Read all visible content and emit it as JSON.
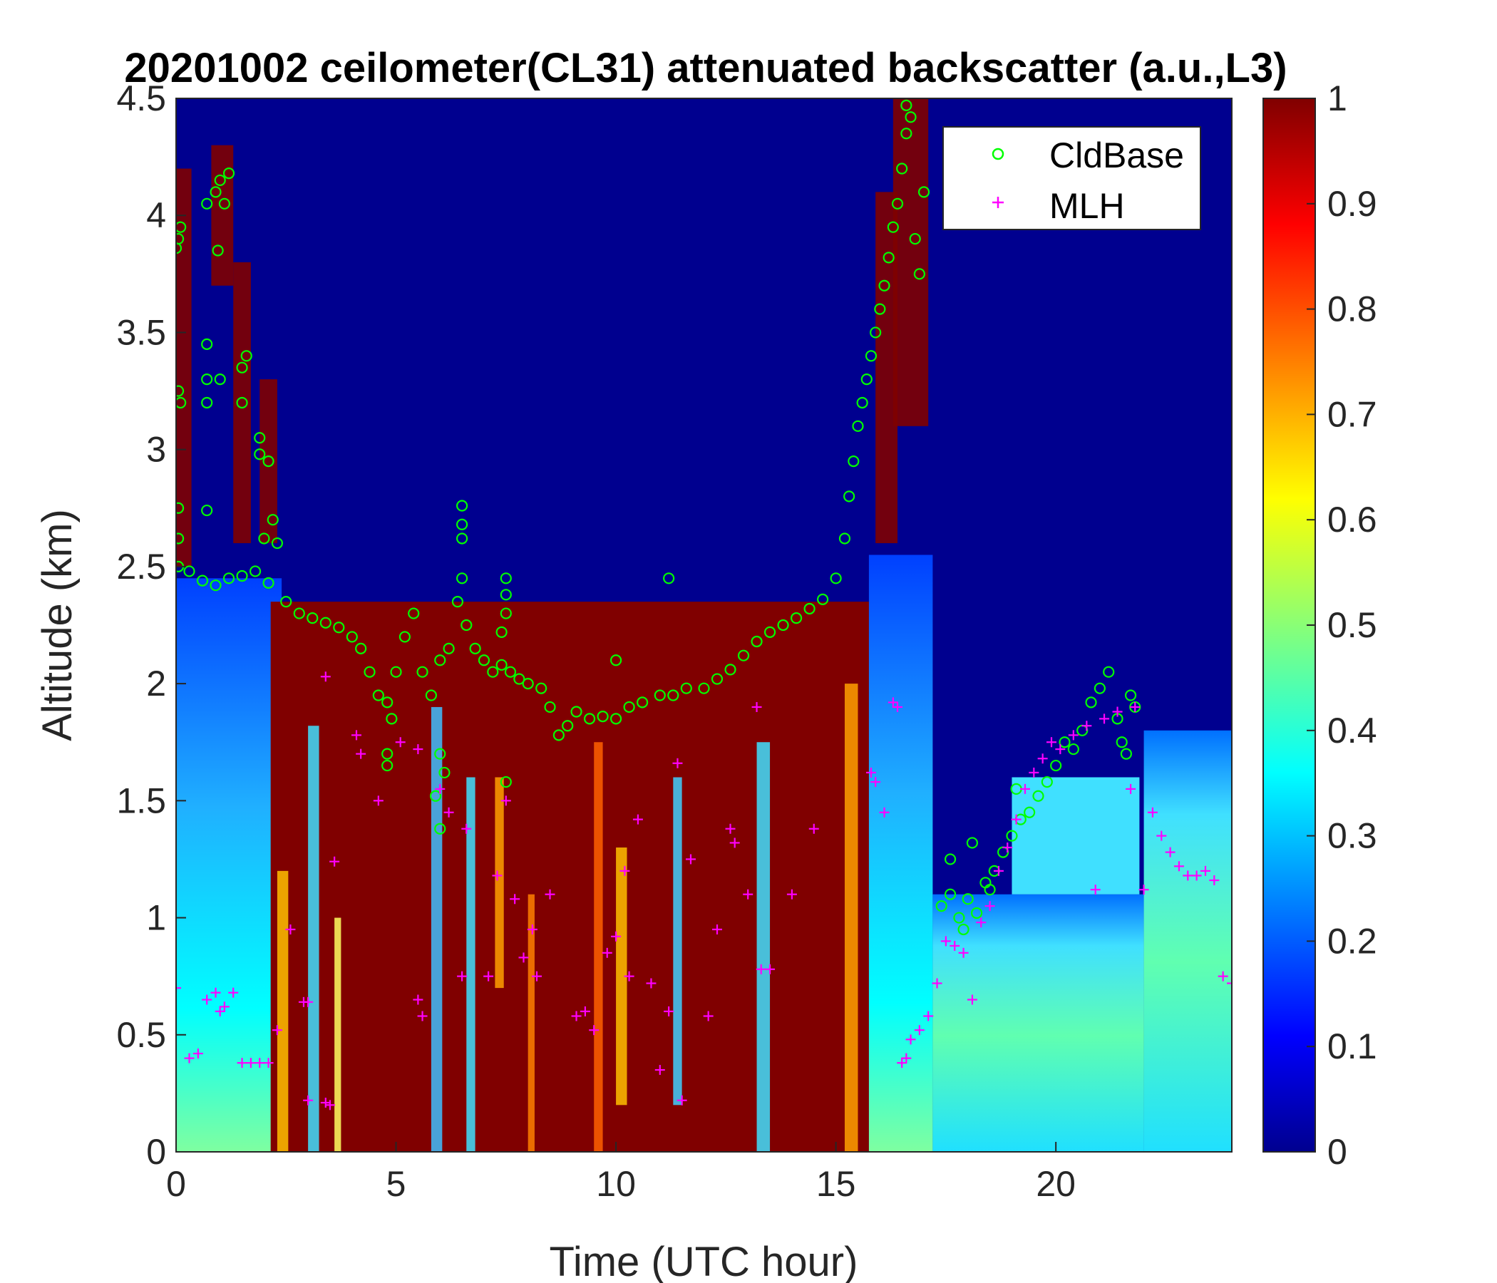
{
  "chart_data": {
    "type": "heatmap",
    "title": "20201002 ceilometer(CL31) attenuated backscatter (a.u.,L3)",
    "xlabel": "Time (UTC hour)",
    "ylabel": "Altitude (km)",
    "xlim": [
      0,
      24
    ],
    "ylim": [
      0,
      4.5
    ],
    "x_ticks": [
      "0",
      "5",
      "10",
      "15",
      "20"
    ],
    "y_ticks": [
      "0",
      "0.5",
      "1",
      "1.5",
      "2",
      "2.5",
      "3",
      "3.5",
      "4",
      "4.5"
    ],
    "colorbar": {
      "colormap": "jet",
      "range": [
        0,
        1
      ],
      "ticks": [
        "0",
        "0.1",
        "0.2",
        "0.3",
        "0.4",
        "0.5",
        "0.6",
        "0.7",
        "0.8",
        "0.9",
        "1"
      ]
    },
    "legend_position": "top-right",
    "grid": false,
    "series": [
      {
        "name": "CldBase",
        "marker": "circle",
        "color": "#00ff00",
        "points": [
          [
            0.0,
            3.86
          ],
          [
            0.05,
            3.9
          ],
          [
            0.1,
            3.95
          ],
          [
            0.05,
            3.25
          ],
          [
            0.1,
            3.2
          ],
          [
            0.05,
            2.75
          ],
          [
            0.05,
            2.62
          ],
          [
            0.05,
            2.5
          ],
          [
            0.3,
            2.48
          ],
          [
            0.6,
            2.44
          ],
          [
            0.9,
            2.42
          ],
          [
            1.2,
            2.45
          ],
          [
            1.5,
            2.46
          ],
          [
            1.8,
            2.48
          ],
          [
            2.1,
            2.43
          ],
          [
            0.7,
            4.05
          ],
          [
            0.9,
            4.1
          ],
          [
            1.0,
            4.15
          ],
          [
            1.1,
            4.05
          ],
          [
            1.2,
            4.18
          ],
          [
            0.95,
            3.85
          ],
          [
            0.7,
            3.45
          ],
          [
            0.7,
            3.3
          ],
          [
            0.7,
            3.2
          ],
          [
            1.0,
            3.3
          ],
          [
            1.5,
            3.35
          ],
          [
            1.6,
            3.4
          ],
          [
            1.5,
            3.2
          ],
          [
            1.9,
            3.05
          ],
          [
            1.9,
            2.98
          ],
          [
            2.1,
            2.95
          ],
          [
            2.2,
            2.7
          ],
          [
            2.3,
            2.6
          ],
          [
            2.0,
            2.62
          ],
          [
            0.7,
            2.74
          ],
          [
            2.5,
            2.35
          ],
          [
            2.8,
            2.3
          ],
          [
            3.1,
            2.28
          ],
          [
            3.4,
            2.26
          ],
          [
            3.7,
            2.24
          ],
          [
            4.0,
            2.2
          ],
          [
            4.2,
            2.15
          ],
          [
            4.4,
            2.05
          ],
          [
            4.6,
            1.95
          ],
          [
            4.8,
            1.92
          ],
          [
            5.0,
            2.05
          ],
          [
            5.2,
            2.2
          ],
          [
            5.4,
            2.3
          ],
          [
            5.6,
            2.05
          ],
          [
            5.8,
            1.95
          ],
          [
            6.0,
            2.1
          ],
          [
            6.2,
            2.15
          ],
          [
            6.4,
            2.35
          ],
          [
            6.5,
            2.45
          ],
          [
            6.6,
            2.25
          ],
          [
            6.8,
            2.15
          ],
          [
            7.0,
            2.1
          ],
          [
            7.2,
            2.05
          ],
          [
            7.4,
            2.08
          ],
          [
            7.6,
            2.05
          ],
          [
            7.8,
            2.02
          ],
          [
            8.0,
            2.0
          ],
          [
            8.3,
            1.98
          ],
          [
            8.5,
            1.9
          ],
          [
            8.7,
            1.78
          ],
          [
            8.9,
            1.82
          ],
          [
            9.1,
            1.88
          ],
          [
            9.4,
            1.85
          ],
          [
            9.7,
            1.86
          ],
          [
            10.0,
            1.85
          ],
          [
            10.3,
            1.9
          ],
          [
            10.6,
            1.92
          ],
          [
            11.0,
            1.95
          ],
          [
            11.3,
            1.95
          ],
          [
            11.6,
            1.98
          ],
          [
            12.0,
            1.98
          ],
          [
            12.3,
            2.02
          ],
          [
            12.6,
            2.06
          ],
          [
            12.9,
            2.12
          ],
          [
            13.2,
            2.18
          ],
          [
            13.5,
            2.22
          ],
          [
            13.8,
            2.25
          ],
          [
            14.1,
            2.28
          ],
          [
            14.4,
            2.32
          ],
          [
            14.7,
            2.36
          ],
          [
            15.0,
            2.45
          ],
          [
            15.2,
            2.62
          ],
          [
            15.3,
            2.8
          ],
          [
            15.4,
            2.95
          ],
          [
            15.5,
            3.1
          ],
          [
            15.6,
            3.2
          ],
          [
            15.7,
            3.3
          ],
          [
            15.8,
            3.4
          ],
          [
            15.9,
            3.5
          ],
          [
            16.0,
            3.6
          ],
          [
            16.1,
            3.7
          ],
          [
            16.2,
            3.82
          ],
          [
            16.3,
            3.95
          ],
          [
            16.4,
            4.05
          ],
          [
            16.5,
            4.2
          ],
          [
            16.6,
            4.35
          ],
          [
            16.6,
            4.47
          ],
          [
            16.7,
            4.42
          ],
          [
            16.8,
            3.9
          ],
          [
            16.9,
            3.75
          ],
          [
            17.0,
            4.1
          ],
          [
            6.5,
            2.76
          ],
          [
            6.5,
            2.68
          ],
          [
            6.5,
            2.62
          ],
          [
            11.2,
            2.45
          ],
          [
            10.0,
            2.1
          ],
          [
            7.5,
            1.58
          ],
          [
            4.8,
            1.7
          ],
          [
            4.8,
            1.65
          ],
          [
            4.9,
            1.85
          ],
          [
            5.9,
            1.52
          ],
          [
            6.0,
            1.38
          ],
          [
            6.0,
            1.7
          ],
          [
            6.1,
            1.62
          ],
          [
            7.5,
            2.45
          ],
          [
            7.5,
            2.38
          ],
          [
            7.5,
            2.3
          ],
          [
            7.4,
            2.22
          ],
          [
            17.4,
            1.05
          ],
          [
            17.6,
            1.1
          ],
          [
            17.8,
            1.0
          ],
          [
            17.9,
            0.95
          ],
          [
            18.0,
            1.08
          ],
          [
            18.2,
            1.02
          ],
          [
            18.4,
            1.15
          ],
          [
            18.6,
            1.2
          ],
          [
            18.8,
            1.28
          ],
          [
            19.0,
            1.35
          ],
          [
            19.2,
            1.42
          ],
          [
            19.4,
            1.45
          ],
          [
            19.6,
            1.52
          ],
          [
            19.8,
            1.58
          ],
          [
            20.0,
            1.65
          ],
          [
            20.2,
            1.75
          ],
          [
            20.4,
            1.72
          ],
          [
            20.6,
            1.8
          ],
          [
            20.8,
            1.92
          ],
          [
            21.0,
            1.98
          ],
          [
            21.2,
            2.05
          ],
          [
            21.4,
            1.85
          ],
          [
            21.5,
            1.75
          ],
          [
            21.6,
            1.7
          ],
          [
            21.7,
            1.95
          ],
          [
            21.8,
            1.9
          ],
          [
            17.6,
            1.25
          ],
          [
            18.1,
            1.32
          ],
          [
            18.5,
            1.12
          ],
          [
            19.1,
            1.55
          ]
        ]
      },
      {
        "name": "MLH",
        "marker": "plus",
        "color": "#ff00ff",
        "points": [
          [
            0.0,
            0.7
          ],
          [
            0.3,
            0.4
          ],
          [
            0.5,
            0.42
          ],
          [
            0.7,
            0.65
          ],
          [
            0.9,
            0.68
          ],
          [
            1.0,
            0.6
          ],
          [
            1.1,
            0.62
          ],
          [
            1.3,
            0.68
          ],
          [
            1.5,
            0.38
          ],
          [
            1.7,
            0.38
          ],
          [
            1.9,
            0.38
          ],
          [
            2.1,
            0.38
          ],
          [
            2.3,
            0.52
          ],
          [
            2.6,
            0.95
          ],
          [
            2.9,
            0.64
          ],
          [
            3.0,
            0.64
          ],
          [
            3.0,
            0.22
          ],
          [
            3.4,
            0.21
          ],
          [
            3.5,
            0.2
          ],
          [
            3.6,
            1.24
          ],
          [
            3.4,
            2.03
          ],
          [
            4.1,
            1.78
          ],
          [
            4.2,
            1.7
          ],
          [
            4.6,
            1.5
          ],
          [
            5.1,
            1.75
          ],
          [
            5.5,
            1.72
          ],
          [
            5.5,
            0.65
          ],
          [
            5.6,
            0.58
          ],
          [
            6.0,
            1.55
          ],
          [
            6.2,
            1.45
          ],
          [
            6.5,
            0.75
          ],
          [
            6.6,
            1.38
          ],
          [
            7.1,
            0.75
          ],
          [
            7.3,
            1.18
          ],
          [
            7.5,
            1.5
          ],
          [
            7.7,
            1.08
          ],
          [
            7.9,
            0.83
          ],
          [
            8.1,
            0.95
          ],
          [
            8.2,
            0.75
          ],
          [
            8.5,
            1.1
          ],
          [
            9.1,
            0.58
          ],
          [
            9.3,
            0.6
          ],
          [
            9.5,
            0.52
          ],
          [
            9.8,
            0.85
          ],
          [
            10.0,
            0.92
          ],
          [
            10.2,
            1.2
          ],
          [
            10.3,
            0.75
          ],
          [
            10.5,
            1.42
          ],
          [
            10.8,
            0.72
          ],
          [
            11.0,
            0.35
          ],
          [
            11.2,
            0.6
          ],
          [
            11.4,
            1.66
          ],
          [
            11.5,
            0.22
          ],
          [
            11.7,
            1.25
          ],
          [
            12.1,
            0.58
          ],
          [
            12.3,
            0.95
          ],
          [
            12.6,
            1.38
          ],
          [
            12.7,
            1.32
          ],
          [
            13.0,
            1.1
          ],
          [
            13.3,
            0.78
          ],
          [
            13.5,
            0.78
          ],
          [
            13.2,
            1.9
          ],
          [
            14.0,
            1.1
          ],
          [
            14.5,
            1.38
          ],
          [
            15.8,
            1.62
          ],
          [
            15.9,
            1.58
          ],
          [
            16.1,
            1.45
          ],
          [
            16.3,
            1.92
          ],
          [
            16.4,
            1.9
          ],
          [
            16.5,
            0.38
          ],
          [
            16.6,
            0.4
          ],
          [
            16.7,
            0.48
          ],
          [
            16.9,
            0.52
          ],
          [
            17.1,
            0.58
          ],
          [
            17.3,
            0.72
          ],
          [
            17.5,
            0.9
          ],
          [
            17.7,
            0.88
          ],
          [
            17.9,
            0.85
          ],
          [
            18.1,
            0.65
          ],
          [
            18.3,
            0.98
          ],
          [
            18.5,
            1.05
          ],
          [
            18.7,
            1.2
          ],
          [
            18.9,
            1.3
          ],
          [
            19.1,
            1.42
          ],
          [
            19.3,
            1.55
          ],
          [
            19.5,
            1.62
          ],
          [
            19.7,
            1.68
          ],
          [
            19.9,
            1.75
          ],
          [
            20.1,
            1.72
          ],
          [
            20.4,
            1.78
          ],
          [
            20.7,
            1.82
          ],
          [
            20.9,
            1.12
          ],
          [
            21.1,
            1.85
          ],
          [
            21.4,
            1.88
          ],
          [
            21.7,
            1.55
          ],
          [
            21.8,
            1.9
          ],
          [
            22.0,
            1.12
          ],
          [
            22.2,
            1.45
          ],
          [
            22.4,
            1.35
          ],
          [
            22.6,
            1.28
          ],
          [
            22.8,
            1.22
          ],
          [
            23.0,
            1.18
          ],
          [
            23.2,
            1.18
          ],
          [
            23.4,
            1.2
          ],
          [
            23.6,
            1.16
          ],
          [
            23.8,
            0.75
          ],
          [
            24.0,
            0.72
          ]
        ]
      }
    ]
  }
}
